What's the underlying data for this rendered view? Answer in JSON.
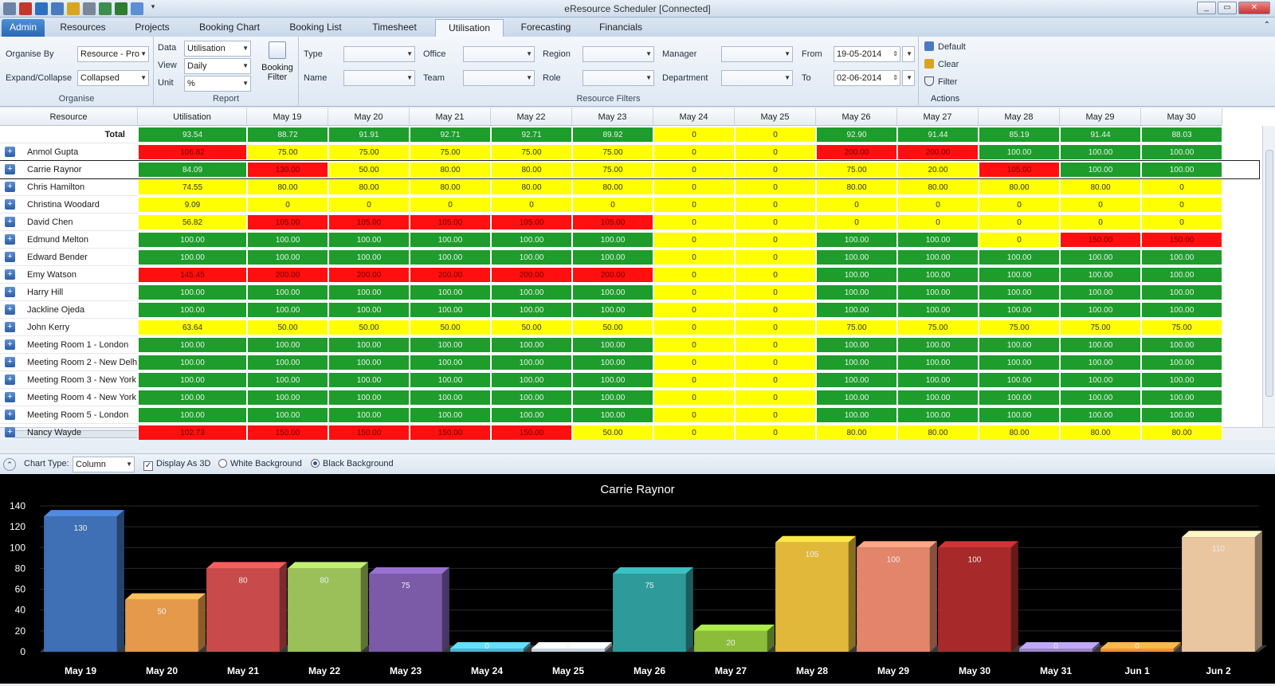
{
  "window": {
    "title": "eResource Scheduler [Connected]"
  },
  "tabs": [
    {
      "label": "Admin"
    },
    {
      "label": "Resources"
    },
    {
      "label": "Projects"
    },
    {
      "label": "Booking Chart"
    },
    {
      "label": "Booking List"
    },
    {
      "label": "Timesheet"
    },
    {
      "label": "Utilisation"
    },
    {
      "label": "Forecasting"
    },
    {
      "label": "Financials"
    }
  ],
  "organise": {
    "organise_by_label": "Organise By",
    "organise_by_value": "Resource - Pro",
    "expand_label": "Expand/Collapse",
    "expand_value": "Collapsed",
    "group_label": "Organise"
  },
  "report": {
    "data_label": "Data",
    "data_value": "Utilisation",
    "view_label": "View",
    "view_value": "Daily",
    "unit_label": "Unit",
    "unit_value": "%",
    "booking_filter": "Booking",
    "booking_filter2": "Filter",
    "group_label": "Report"
  },
  "filters": {
    "type": "Type",
    "name": "Name",
    "office": "Office",
    "team": "Team",
    "region": "Region",
    "role": "Role",
    "manager": "Manager",
    "department": "Department",
    "from_label": "From",
    "from_value": "19-05-2014",
    "to_label": "To",
    "to_value": "02-06-2014",
    "group_label": "Resource Filters"
  },
  "actions": {
    "default": "Default",
    "clear": "Clear",
    "filter": "Filter",
    "group_label": "Actions"
  },
  "grid": {
    "columns": [
      "Resource",
      "Utilisation",
      "May 19",
      "May 20",
      "May 21",
      "May 22",
      "May 23",
      "May 24",
      "May 25",
      "May 26",
      "May 27",
      "May 28",
      "May 29",
      "May 30"
    ],
    "total": {
      "label": "Total",
      "cells": [
        [
          "93.54",
          "g"
        ],
        [
          "88.72",
          "g"
        ],
        [
          "91.91",
          "g"
        ],
        [
          "92.71",
          "g"
        ],
        [
          "92.71",
          "g"
        ],
        [
          "89.92",
          "g"
        ],
        [
          "0",
          "y"
        ],
        [
          "0",
          "y"
        ],
        [
          "92.90",
          "g"
        ],
        [
          "91.44",
          "g"
        ],
        [
          "85.19",
          "g"
        ],
        [
          "91.44",
          "g"
        ],
        [
          "88.03",
          "g"
        ]
      ]
    },
    "rows": [
      {
        "name": "Anmol Gupta",
        "cells": [
          [
            "106.82",
            "r"
          ],
          [
            "75.00",
            "y"
          ],
          [
            "75.00",
            "y"
          ],
          [
            "75.00",
            "y"
          ],
          [
            "75.00",
            "y"
          ],
          [
            "75.00",
            "y"
          ],
          [
            "0",
            "y"
          ],
          [
            "0",
            "y"
          ],
          [
            "200.00",
            "r"
          ],
          [
            "200.00",
            "r"
          ],
          [
            "100.00",
            "g"
          ],
          [
            "100.00",
            "g"
          ],
          [
            "100.00",
            "g"
          ]
        ]
      },
      {
        "name": "Carrie Raynor",
        "selected": true,
        "cells": [
          [
            "84.09",
            "g"
          ],
          [
            "130.00",
            "r"
          ],
          [
            "50.00",
            "y"
          ],
          [
            "80.00",
            "y"
          ],
          [
            "80.00",
            "y"
          ],
          [
            "75.00",
            "y"
          ],
          [
            "0",
            "y"
          ],
          [
            "0",
            "y"
          ],
          [
            "75.00",
            "y"
          ],
          [
            "20.00",
            "y"
          ],
          [
            "105.00",
            "r"
          ],
          [
            "100.00",
            "g"
          ],
          [
            "100.00",
            "g"
          ]
        ]
      },
      {
        "name": "Chris Hamilton",
        "cells": [
          [
            "74.55",
            "y"
          ],
          [
            "80.00",
            "y"
          ],
          [
            "80.00",
            "y"
          ],
          [
            "80.00",
            "y"
          ],
          [
            "80.00",
            "y"
          ],
          [
            "80.00",
            "y"
          ],
          [
            "0",
            "y"
          ],
          [
            "0",
            "y"
          ],
          [
            "80.00",
            "y"
          ],
          [
            "80.00",
            "y"
          ],
          [
            "80.00",
            "y"
          ],
          [
            "80.00",
            "y"
          ],
          [
            "0",
            "y"
          ]
        ]
      },
      {
        "name": "Christina Woodard",
        "cells": [
          [
            "9.09",
            "y"
          ],
          [
            "0",
            "y"
          ],
          [
            "0",
            "y"
          ],
          [
            "0",
            "y"
          ],
          [
            "0",
            "y"
          ],
          [
            "0",
            "y"
          ],
          [
            "0",
            "y"
          ],
          [
            "0",
            "y"
          ],
          [
            "0",
            "y"
          ],
          [
            "0",
            "y"
          ],
          [
            "0",
            "y"
          ],
          [
            "0",
            "y"
          ],
          [
            "0",
            "y"
          ]
        ]
      },
      {
        "name": "David Chen",
        "cells": [
          [
            "56.82",
            "y"
          ],
          [
            "105.00",
            "r"
          ],
          [
            "105.00",
            "r"
          ],
          [
            "105.00",
            "r"
          ],
          [
            "105.00",
            "r"
          ],
          [
            "105.00",
            "r"
          ],
          [
            "0",
            "y"
          ],
          [
            "0",
            "y"
          ],
          [
            "0",
            "y"
          ],
          [
            "0",
            "y"
          ],
          [
            "0",
            "y"
          ],
          [
            "0",
            "y"
          ],
          [
            "0",
            "y"
          ]
        ]
      },
      {
        "name": "Edmund Melton",
        "cells": [
          [
            "100.00",
            "g"
          ],
          [
            "100.00",
            "g"
          ],
          [
            "100.00",
            "g"
          ],
          [
            "100.00",
            "g"
          ],
          [
            "100.00",
            "g"
          ],
          [
            "100.00",
            "g"
          ],
          [
            "0",
            "y"
          ],
          [
            "0",
            "y"
          ],
          [
            "100.00",
            "g"
          ],
          [
            "100.00",
            "g"
          ],
          [
            "0",
            "y"
          ],
          [
            "150.00",
            "r"
          ],
          [
            "150.00",
            "r"
          ]
        ]
      },
      {
        "name": "Edward Bender",
        "cells": [
          [
            "100.00",
            "g"
          ],
          [
            "100.00",
            "g"
          ],
          [
            "100.00",
            "g"
          ],
          [
            "100.00",
            "g"
          ],
          [
            "100.00",
            "g"
          ],
          [
            "100.00",
            "g"
          ],
          [
            "0",
            "y"
          ],
          [
            "0",
            "y"
          ],
          [
            "100.00",
            "g"
          ],
          [
            "100.00",
            "g"
          ],
          [
            "100.00",
            "g"
          ],
          [
            "100.00",
            "g"
          ],
          [
            "100.00",
            "g"
          ]
        ]
      },
      {
        "name": "Emy Watson",
        "cells": [
          [
            "145.45",
            "r"
          ],
          [
            "200.00",
            "r"
          ],
          [
            "200.00",
            "r"
          ],
          [
            "200.00",
            "r"
          ],
          [
            "200.00",
            "r"
          ],
          [
            "200.00",
            "r"
          ],
          [
            "0",
            "y"
          ],
          [
            "0",
            "y"
          ],
          [
            "100.00",
            "g"
          ],
          [
            "100.00",
            "g"
          ],
          [
            "100.00",
            "g"
          ],
          [
            "100.00",
            "g"
          ],
          [
            "100.00",
            "g"
          ]
        ]
      },
      {
        "name": "Harry Hill",
        "cells": [
          [
            "100.00",
            "g"
          ],
          [
            "100.00",
            "g"
          ],
          [
            "100.00",
            "g"
          ],
          [
            "100.00",
            "g"
          ],
          [
            "100.00",
            "g"
          ],
          [
            "100.00",
            "g"
          ],
          [
            "0",
            "y"
          ],
          [
            "0",
            "y"
          ],
          [
            "100.00",
            "g"
          ],
          [
            "100.00",
            "g"
          ],
          [
            "100.00",
            "g"
          ],
          [
            "100.00",
            "g"
          ],
          [
            "100.00",
            "g"
          ]
        ]
      },
      {
        "name": "Jackline Ojeda",
        "cells": [
          [
            "100.00",
            "g"
          ],
          [
            "100.00",
            "g"
          ],
          [
            "100.00",
            "g"
          ],
          [
            "100.00",
            "g"
          ],
          [
            "100.00",
            "g"
          ],
          [
            "100.00",
            "g"
          ],
          [
            "0",
            "y"
          ],
          [
            "0",
            "y"
          ],
          [
            "100.00",
            "g"
          ],
          [
            "100.00",
            "g"
          ],
          [
            "100.00",
            "g"
          ],
          [
            "100.00",
            "g"
          ],
          [
            "100.00",
            "g"
          ]
        ]
      },
      {
        "name": "John Kerry",
        "cells": [
          [
            "63.64",
            "y"
          ],
          [
            "50.00",
            "y"
          ],
          [
            "50.00",
            "y"
          ],
          [
            "50.00",
            "y"
          ],
          [
            "50.00",
            "y"
          ],
          [
            "50.00",
            "y"
          ],
          [
            "0",
            "y"
          ],
          [
            "0",
            "y"
          ],
          [
            "75.00",
            "y"
          ],
          [
            "75.00",
            "y"
          ],
          [
            "75.00",
            "y"
          ],
          [
            "75.00",
            "y"
          ],
          [
            "75.00",
            "y"
          ]
        ]
      },
      {
        "name": "Meeting Room 1 - London",
        "cells": [
          [
            "100.00",
            "g"
          ],
          [
            "100.00",
            "g"
          ],
          [
            "100.00",
            "g"
          ],
          [
            "100.00",
            "g"
          ],
          [
            "100.00",
            "g"
          ],
          [
            "100.00",
            "g"
          ],
          [
            "0",
            "y"
          ],
          [
            "0",
            "y"
          ],
          [
            "100.00",
            "g"
          ],
          [
            "100.00",
            "g"
          ],
          [
            "100.00",
            "g"
          ],
          [
            "100.00",
            "g"
          ],
          [
            "100.00",
            "g"
          ]
        ]
      },
      {
        "name": "Meeting Room 2 - New Delh",
        "cells": [
          [
            "100.00",
            "g"
          ],
          [
            "100.00",
            "g"
          ],
          [
            "100.00",
            "g"
          ],
          [
            "100.00",
            "g"
          ],
          [
            "100.00",
            "g"
          ],
          [
            "100.00",
            "g"
          ],
          [
            "0",
            "y"
          ],
          [
            "0",
            "y"
          ],
          [
            "100.00",
            "g"
          ],
          [
            "100.00",
            "g"
          ],
          [
            "100.00",
            "g"
          ],
          [
            "100.00",
            "g"
          ],
          [
            "100.00",
            "g"
          ]
        ]
      },
      {
        "name": "Meeting Room 3 - New York",
        "cells": [
          [
            "100.00",
            "g"
          ],
          [
            "100.00",
            "g"
          ],
          [
            "100.00",
            "g"
          ],
          [
            "100.00",
            "g"
          ],
          [
            "100.00",
            "g"
          ],
          [
            "100.00",
            "g"
          ],
          [
            "0",
            "y"
          ],
          [
            "0",
            "y"
          ],
          [
            "100.00",
            "g"
          ],
          [
            "100.00",
            "g"
          ],
          [
            "100.00",
            "g"
          ],
          [
            "100.00",
            "g"
          ],
          [
            "100.00",
            "g"
          ]
        ]
      },
      {
        "name": "Meeting Room 4 - New York",
        "cells": [
          [
            "100.00",
            "g"
          ],
          [
            "100.00",
            "g"
          ],
          [
            "100.00",
            "g"
          ],
          [
            "100.00",
            "g"
          ],
          [
            "100.00",
            "g"
          ],
          [
            "100.00",
            "g"
          ],
          [
            "0",
            "y"
          ],
          [
            "0",
            "y"
          ],
          [
            "100.00",
            "g"
          ],
          [
            "100.00",
            "g"
          ],
          [
            "100.00",
            "g"
          ],
          [
            "100.00",
            "g"
          ],
          [
            "100.00",
            "g"
          ]
        ]
      },
      {
        "name": "Meeting Room 5 - London",
        "cells": [
          [
            "100.00",
            "g"
          ],
          [
            "100.00",
            "g"
          ],
          [
            "100.00",
            "g"
          ],
          [
            "100.00",
            "g"
          ],
          [
            "100.00",
            "g"
          ],
          [
            "100.00",
            "g"
          ],
          [
            "0",
            "y"
          ],
          [
            "0",
            "y"
          ],
          [
            "100.00",
            "g"
          ],
          [
            "100.00",
            "g"
          ],
          [
            "100.00",
            "g"
          ],
          [
            "100.00",
            "g"
          ],
          [
            "100.00",
            "g"
          ]
        ]
      },
      {
        "name": "Nancy Wayde",
        "cells": [
          [
            "102.73",
            "r"
          ],
          [
            "150.00",
            "r"
          ],
          [
            "150.00",
            "r"
          ],
          [
            "150.00",
            "r"
          ],
          [
            "150.00",
            "r"
          ],
          [
            "50.00",
            "y"
          ],
          [
            "0",
            "y"
          ],
          [
            "0",
            "y"
          ],
          [
            "80.00",
            "y"
          ],
          [
            "80.00",
            "y"
          ],
          [
            "80.00",
            "y"
          ],
          [
            "80.00",
            "y"
          ],
          [
            "80.00",
            "y"
          ]
        ]
      }
    ]
  },
  "chart_toolbar": {
    "chart_type_label": "Chart Type:",
    "chart_type_value": "Column",
    "display_3d": "Display As 3D",
    "white_bg": "White Background",
    "black_bg": "Black Background"
  },
  "chart_data": {
    "type": "bar",
    "title": "Carrie Raynor",
    "categories": [
      "May 19",
      "May 20",
      "May 21",
      "May 22",
      "May 23",
      "May 24",
      "May 25",
      "May 26",
      "May 27",
      "May 28",
      "May 29",
      "May 30",
      "May 31",
      "Jun 1",
      "Jun 2"
    ],
    "values": [
      130,
      50,
      80,
      80,
      75,
      0,
      0,
      75,
      20,
      105,
      100,
      100,
      0,
      0,
      110
    ],
    "colors": [
      "#3f6fb4",
      "#e49a4a",
      "#c84a4a",
      "#9bc05a",
      "#7b5aa8",
      "#4fb3d1",
      "#c9d3df",
      "#2f9a9a",
      "#8bbd3a",
      "#e2b83a",
      "#e2856a",
      "#a8292a",
      "#9a86c6",
      "#e8953a",
      "#e9c5a0"
    ],
    "ylim": [
      0,
      140
    ],
    "yticks": [
      0,
      20,
      40,
      60,
      80,
      100,
      120,
      140
    ],
    "xlabel": "",
    "ylabel": "",
    "background": "#000000"
  }
}
